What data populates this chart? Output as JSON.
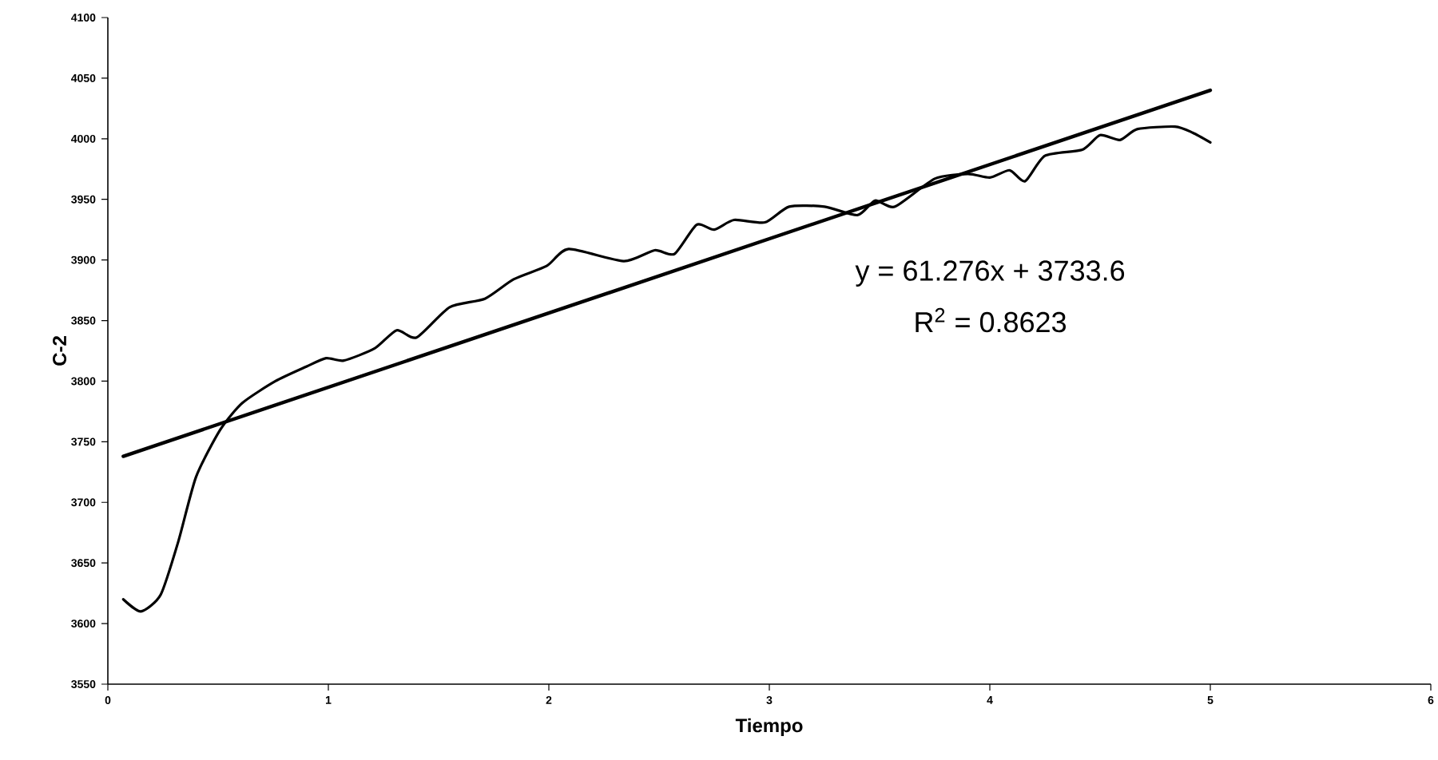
{
  "chart_data": {
    "type": "line",
    "xlabel": "Tiempo",
    "ylabel": "C-2",
    "xlim": [
      0,
      6
    ],
    "xticks": [
      0,
      1,
      2,
      3,
      4,
      5,
      6
    ],
    "ylim": [
      3550,
      4100
    ],
    "yticks": [
      3550,
      3600,
      3650,
      3700,
      3750,
      3800,
      3850,
      3900,
      3950,
      4000,
      4050,
      4100
    ],
    "grid": false,
    "marker": "none",
    "line_style": "solid",
    "series": [
      {
        "color": "#000000",
        "x": [
          0.07,
          0.15,
          0.24,
          0.32,
          0.4,
          0.51,
          0.61,
          0.76,
          0.9,
          0.99,
          1.07,
          1.21,
          1.31,
          1.4,
          1.55,
          1.71,
          1.84,
          1.99,
          2.09,
          2.34,
          2.48,
          2.57,
          2.67,
          2.75,
          2.84,
          2.98,
          3.09,
          3.25,
          3.4,
          3.48,
          3.57,
          3.75,
          3.9,
          4.0,
          4.09,
          4.16,
          4.25,
          4.42,
          4.5,
          4.59,
          4.67,
          4.84,
          4.92,
          5.0
        ],
        "values": [
          3620,
          3610,
          3624,
          3668,
          3721,
          3760,
          3782,
          3800,
          3812,
          3819,
          3817,
          3827,
          3842,
          3836,
          3861,
          3868,
          3884,
          3895,
          3909,
          3899,
          3908,
          3905,
          3929,
          3925,
          3933,
          3931,
          3944,
          3944,
          3937,
          3949,
          3944,
          3967,
          3971,
          3968,
          3974,
          3965,
          3986,
          3991,
          4003,
          3999,
          4008,
          4010,
          4005,
          3997
        ]
      },
      {
        "color": "#000000",
        "type": "line",
        "x": [
          0.07,
          5.0
        ],
        "values": [
          3738,
          4040
        ]
      }
    ],
    "annotations": [
      "y = 61.276x + 3733.6",
      "R$^{2}$ = 0.8623"
    ]
  }
}
